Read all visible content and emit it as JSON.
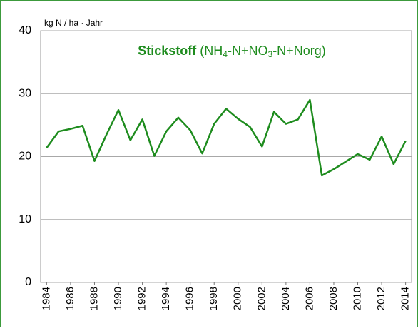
{
  "chart_data": {
    "type": "line",
    "title_parts": [
      "Stickstoff",
      "(NH",
      "4",
      "-N+NO",
      "3",
      "-N+Norg)"
    ],
    "y_axis_label": "kg N / ha · Jahr",
    "x": [
      1984,
      1985,
      1986,
      1987,
      1988,
      1989,
      1990,
      1991,
      1992,
      1993,
      1994,
      1995,
      1996,
      1997,
      1998,
      1999,
      2000,
      2001,
      2002,
      2003,
      2004,
      2005,
      2006,
      2007,
      2008,
      2009,
      2010,
      2011,
      2012,
      2013,
      2014
    ],
    "series": [
      {
        "color": "#1e8c1e",
        "values": [
          21.4,
          24.0,
          24.4,
          24.9,
          19.3,
          23.5,
          27.4,
          22.6,
          25.9,
          20.1,
          24.0,
          26.2,
          24.2,
          20.5,
          25.2,
          27.6,
          26.0,
          24.7,
          21.6,
          27.1,
          25.2,
          25.9,
          29.0,
          17.0,
          18.0,
          19.2,
          20.4,
          19.5,
          23.2,
          18.8,
          22.5
        ]
      }
    ],
    "xlim": [
      1983.5,
      2014.5
    ],
    "xticks": [
      1984,
      1986,
      1988,
      1990,
      1992,
      1994,
      1996,
      1998,
      2000,
      2002,
      2004,
      2006,
      2008,
      2010,
      2012,
      2014
    ],
    "ylim": [
      0,
      40
    ],
    "yticks": [
      0,
      10,
      20,
      30,
      40
    ],
    "grid": true
  }
}
